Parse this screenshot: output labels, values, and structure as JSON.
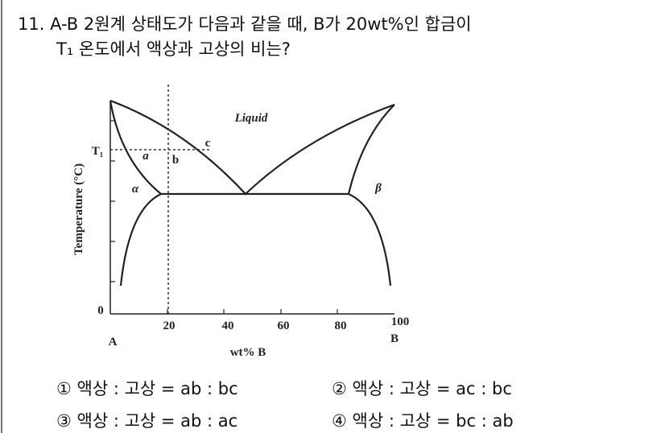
{
  "question": {
    "line1": "11. A-B 2원계 상태도가 다음과 같을 때, B가 20wt%인 합금이",
    "line2": "T₁ 온도에서 액상과 고상의 비는?"
  },
  "diagram": {
    "y_axis_label": "Temperature (°C)",
    "x_axis_label": "wt% B",
    "x_tick_labels": [
      "0",
      "20",
      "40",
      "60",
      "80",
      "100"
    ],
    "left_end": "A",
    "right_end": "B",
    "temperature_label": "T₁",
    "region_liquid": "Liquid",
    "region_alpha": "α",
    "region_beta": "β",
    "point_a": "a",
    "point_b": "b",
    "point_c": "c"
  },
  "options": [
    "① 액상 : 고상 = ab : bc",
    "② 액상 : 고상 = ac : bc",
    "③ 액상 : 고상 = ab : ac",
    "④ 액상 : 고상 = bc : ab"
  ]
}
